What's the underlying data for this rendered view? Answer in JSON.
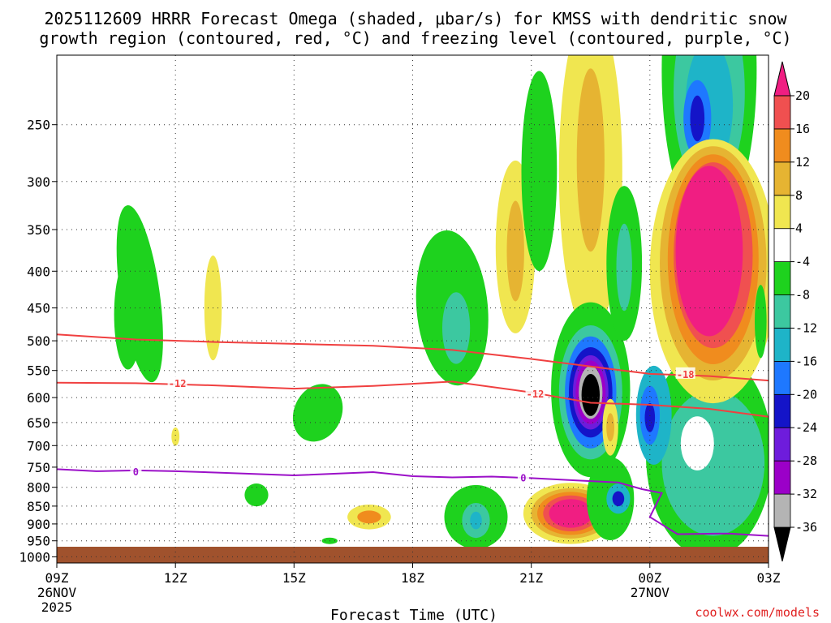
{
  "chart_data": {
    "type": "contour",
    "title_line1": "2025112609 HRRR Forecast Omega (shaded, μbar/s) for KMSS with dendritic snow",
    "title_line2": "growth region (contoured, red, °C) and freezing level (contoured, purple, °C)",
    "xlabel": "Forecast Time (UTC)",
    "credit": "coolwx.com/models",
    "x_range_hours": [
      0,
      18
    ],
    "x_ticks": [
      {
        "h": 0,
        "label": "09Z",
        "sub1": "26NOV",
        "sub2": "2025"
      },
      {
        "h": 3,
        "label": "12Z"
      },
      {
        "h": 6,
        "label": "15Z"
      },
      {
        "h": 9,
        "label": "18Z"
      },
      {
        "h": 12,
        "label": "21Z"
      },
      {
        "h": 15,
        "label": "00Z",
        "sub1": "27NOV"
      },
      {
        "h": 18,
        "label": "03Z"
      }
    ],
    "y_range_hpa": [
      200,
      1000
    ],
    "y_ticks": [
      250,
      300,
      350,
      400,
      450,
      500,
      550,
      600,
      650,
      700,
      750,
      800,
      850,
      900,
      950,
      1000
    ],
    "colorbar": {
      "colors": [
        "#000000",
        "#b4b4b4",
        "#9b00c8",
        "#6e1cdc",
        "#1414c8",
        "#1e78ff",
        "#1eb4c8",
        "#3cc8a0",
        "#1ed21e",
        "#ffffff",
        "#f0e650",
        "#e6b432",
        "#f08c1e",
        "#f05050",
        "#f01e82"
      ],
      "labels": [
        "-36",
        "-32",
        "-28",
        "-24",
        "-20",
        "-16",
        "-12",
        "-8",
        "-4",
        "4",
        "8",
        "12",
        "16",
        "20"
      ]
    },
    "dgz_contours": [
      {
        "label": "-18",
        "points": [
          [
            0,
            490
          ],
          [
            2,
            498
          ],
          [
            4,
            502
          ],
          [
            6,
            505
          ],
          [
            8,
            508
          ],
          [
            10,
            515
          ],
          [
            12,
            530
          ],
          [
            13.5,
            543
          ],
          [
            15,
            556
          ],
          [
            16.5,
            560
          ],
          [
            18,
            568
          ]
        ]
      },
      {
        "label": "-12",
        "points": [
          [
            0,
            572
          ],
          [
            2,
            573
          ],
          [
            4,
            577
          ],
          [
            6,
            583
          ],
          [
            8,
            578
          ],
          [
            10,
            570
          ],
          [
            12,
            590
          ],
          [
            13.5,
            610
          ],
          [
            15,
            614
          ],
          [
            16.5,
            622
          ],
          [
            18,
            638
          ]
        ]
      }
    ],
    "dgz_label_positions": [
      {
        "h": 3.05,
        "p": 572,
        "label": "-12"
      },
      {
        "h": 12.1,
        "p": 592,
        "label": "-12"
      },
      {
        "h": 15.9,
        "p": 556,
        "label": "-18"
      }
    ],
    "freezing_level": {
      "label": "0",
      "points": [
        [
          0,
          755
        ],
        [
          1,
          760
        ],
        [
          2,
          758
        ],
        [
          3,
          760
        ],
        [
          4,
          763
        ],
        [
          6,
          770
        ],
        [
          8,
          762
        ],
        [
          9,
          772
        ],
        [
          10,
          775
        ],
        [
          11,
          773
        ],
        [
          12,
          777
        ],
        [
          13.2,
          783
        ],
        [
          14.2,
          788
        ],
        [
          14.8,
          805
        ],
        [
          15.3,
          815
        ],
        [
          15.0,
          880
        ],
        [
          15.7,
          930
        ],
        [
          17,
          928
        ],
        [
          18,
          935
        ]
      ],
      "label_positions": [
        {
          "h": 2.0,
          "p": 760
        },
        {
          "h": 11.8,
          "p": 775
        }
      ]
    },
    "omega_regions": [
      {
        "h": 2.1,
        "p": 430,
        "rh": 0.5,
        "rp": 120,
        "bin": 8,
        "rot": -8
      },
      {
        "h": 1.8,
        "p": 460,
        "rh": 0.35,
        "rp": 80,
        "bin": 8
      },
      {
        "h": 3.95,
        "p": 450,
        "rh": 0.22,
        "rp": 75,
        "bin": 10
      },
      {
        "h": 3.0,
        "p": 680,
        "rh": 0.1,
        "rp": 20,
        "bin": 10
      },
      {
        "h": 6.6,
        "p": 630,
        "rh": 0.6,
        "rp": 60,
        "bin": 8,
        "rot": 25
      },
      {
        "h": 5.05,
        "p": 820,
        "rh": 0.3,
        "rp": 30,
        "bin": 8
      },
      {
        "h": 6.9,
        "p": 950,
        "rh": 0.2,
        "rp": 10,
        "bin": 8
      },
      {
        "h": 7.9,
        "p": 880,
        "rh": 0.55,
        "rp": 35,
        "bin": 10
      },
      {
        "h": 7.9,
        "p": 880,
        "rh": 0.3,
        "rp": 18,
        "bin": 12
      },
      {
        "h": 10.0,
        "p": 450,
        "rh": 0.9,
        "rp": 110,
        "bin": 8,
        "rot": -5
      },
      {
        "h": 10.1,
        "p": 480,
        "rh": 0.35,
        "rp": 55,
        "bin": 7
      },
      {
        "h": 10.6,
        "p": 880,
        "rh": 0.8,
        "rp": 90,
        "bin": 8
      },
      {
        "h": 10.6,
        "p": 890,
        "rh": 0.35,
        "rp": 50,
        "bin": 7
      },
      {
        "h": 10.6,
        "p": 890,
        "rh": 0.15,
        "rp": 25,
        "bin": 6
      },
      {
        "h": 11.6,
        "p": 370,
        "rh": 0.5,
        "rp": 100,
        "bin": 10
      },
      {
        "h": 11.6,
        "p": 375,
        "rh": 0.22,
        "rp": 60,
        "bin": 11
      },
      {
        "h": 12.2,
        "p": 290,
        "rh": 0.45,
        "rp": 90,
        "bin": 8
      },
      {
        "h": 13.5,
        "p": 290,
        "rh": 0.8,
        "rp": 140,
        "bin": 10
      },
      {
        "h": 13.5,
        "p": 280,
        "rh": 0.35,
        "rp": 80,
        "bin": 11
      },
      {
        "h": 13.5,
        "p": 585,
        "rh": 1.0,
        "rp": 160,
        "bin": 8
      },
      {
        "h": 13.5,
        "p": 590,
        "rh": 0.8,
        "rp": 125,
        "bin": 7
      },
      {
        "h": 13.5,
        "p": 590,
        "rh": 0.65,
        "rp": 105,
        "bin": 5
      },
      {
        "h": 13.5,
        "p": 590,
        "rh": 0.55,
        "rp": 85,
        "bin": 4
      },
      {
        "h": 13.5,
        "p": 590,
        "rh": 0.45,
        "rp": 70,
        "bin": 3
      },
      {
        "h": 13.5,
        "p": 590,
        "rh": 0.38,
        "rp": 60,
        "bin": 2
      },
      {
        "h": 13.5,
        "p": 590,
        "rh": 0.3,
        "rp": 50,
        "bin": 1
      },
      {
        "h": 13.5,
        "p": 595,
        "rh": 0.23,
        "rp": 40,
        "bin": 0
      },
      {
        "h": 13.0,
        "p": 870,
        "rh": 1.2,
        "rp": 85,
        "bin": 10
      },
      {
        "h": 13.0,
        "p": 870,
        "rh": 1.0,
        "rp": 70,
        "bin": 11
      },
      {
        "h": 13.0,
        "p": 870,
        "rh": 0.85,
        "rp": 60,
        "bin": 12
      },
      {
        "h": 13.0,
        "p": 870,
        "rh": 0.7,
        "rp": 50,
        "bin": 13
      },
      {
        "h": 13.0,
        "p": 870,
        "rh": 0.55,
        "rp": 40,
        "bin": 14
      },
      {
        "h": 14.0,
        "p": 830,
        "rh": 0.6,
        "rp": 110,
        "bin": 8
      },
      {
        "h": 14.2,
        "p": 830,
        "rh": 0.3,
        "rp": 40,
        "bin": 6
      },
      {
        "h": 14.2,
        "p": 830,
        "rh": 0.15,
        "rp": 20,
        "bin": 4
      },
      {
        "h": 14.35,
        "p": 390,
        "rh": 0.45,
        "rp": 95,
        "bin": 8
      },
      {
        "h": 14.35,
        "p": 395,
        "rh": 0.2,
        "rp": 55,
        "bin": 7
      },
      {
        "h": 14.0,
        "p": 660,
        "rh": 0.2,
        "rp": 60,
        "bin": 10
      },
      {
        "h": 14.0,
        "p": 660,
        "rh": 0.1,
        "rp": 30,
        "bin": 11
      },
      {
        "h": 16.5,
        "p": 720,
        "rh": 1.6,
        "rp": 230,
        "bin": 8
      },
      {
        "h": 16.6,
        "p": 740,
        "rh": 1.3,
        "rp": 170,
        "bin": 7
      },
      {
        "h": 15.1,
        "p": 635,
        "rh": 0.45,
        "rp": 100,
        "bin": 6
      },
      {
        "h": 15.0,
        "p": 635,
        "rh": 0.25,
        "rp": 60,
        "bin": 5
      },
      {
        "h": 15.0,
        "p": 640,
        "rh": 0.13,
        "rp": 30,
        "bin": 4
      },
      {
        "h": 16.5,
        "p": 210,
        "rh": 1.2,
        "rp": 100,
        "bin": 8
      },
      {
        "h": 16.5,
        "p": 225,
        "rh": 0.9,
        "rp": 70,
        "bin": 7
      },
      {
        "h": 16.5,
        "p": 235,
        "rh": 0.6,
        "rp": 48,
        "bin": 6
      },
      {
        "h": 16.2,
        "p": 245,
        "rh": 0.35,
        "rp": 30,
        "bin": 5
      },
      {
        "h": 16.2,
        "p": 245,
        "rh": 0.18,
        "rp": 18,
        "bin": 4
      },
      {
        "h": 16.6,
        "p": 400,
        "rh": 1.6,
        "rp": 160,
        "bin": 10
      },
      {
        "h": 16.6,
        "p": 390,
        "rh": 1.35,
        "rp": 140,
        "bin": 11
      },
      {
        "h": 16.6,
        "p": 385,
        "rh": 1.15,
        "rp": 125,
        "bin": 12
      },
      {
        "h": 16.6,
        "p": 380,
        "rh": 1.0,
        "rp": 110,
        "bin": 13
      },
      {
        "h": 16.5,
        "p": 375,
        "rh": 0.85,
        "rp": 100,
        "bin": 14
      },
      {
        "h": 17.8,
        "p": 470,
        "rh": 0.15,
        "rp": 55,
        "bin": 8
      },
      {
        "h": 16.2,
        "p": 695,
        "rh": 0.42,
        "rp": 60,
        "bin": 9
      }
    ]
  }
}
